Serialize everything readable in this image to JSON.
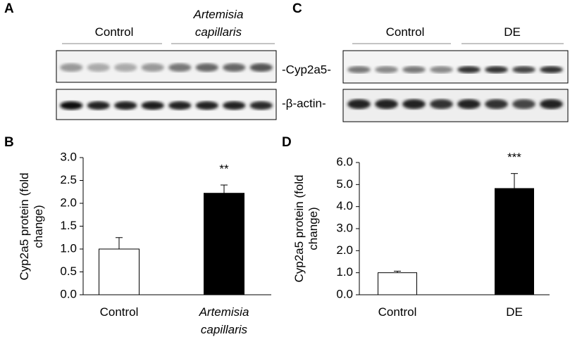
{
  "blots": [
    {
      "panel": "A",
      "groups": [
        "Control",
        "Artemisia capillaris"
      ],
      "bands": [
        "-Cyp2a5-",
        "-β-actin-"
      ]
    },
    {
      "panel": "C",
      "groups": [
        "Control",
        "DE"
      ]
    }
  ],
  "chart_data": [
    {
      "type": "bar",
      "panel": "B",
      "ylabel": "Cyp2a5 protein (fold change)",
      "categories": [
        "Control",
        "Artemisia capillaris"
      ],
      "values": [
        1.0,
        2.22
      ],
      "errors": [
        0.25,
        0.18
      ],
      "colors": [
        "#ffffff",
        "#000000"
      ],
      "annotations": [
        null,
        "**"
      ],
      "ylim": [
        0,
        3
      ],
      "yticks": [
        {
          "value": 0,
          "label": "0.0"
        },
        {
          "value": 0.5,
          "label": "0.5"
        },
        {
          "value": 1,
          "label": "1.0"
        },
        {
          "value": 1.5,
          "label": "1.5"
        },
        {
          "value": 2,
          "label": "2.0"
        },
        {
          "value": 2.5,
          "label": "2.5"
        },
        {
          "value": 3,
          "label": "3.0"
        }
      ]
    },
    {
      "type": "bar",
      "panel": "D",
      "ylabel": "Cyp2a5 protein (fold change)",
      "categories": [
        "Control",
        "DE"
      ],
      "values": [
        1.0,
        4.82
      ],
      "errors": [
        0.07,
        0.68
      ],
      "colors": [
        "#ffffff",
        "#000000"
      ],
      "annotations": [
        null,
        "***"
      ],
      "ylim": [
        0,
        6
      ],
      "yticks": [
        {
          "value": 0,
          "label": "0.0"
        },
        {
          "value": 1,
          "label": "1.0"
        },
        {
          "value": 2,
          "label": "2.0"
        },
        {
          "value": 3,
          "label": "3.0"
        },
        {
          "value": 4,
          "label": "4.0"
        },
        {
          "value": 5,
          "label": "5.0"
        },
        {
          "value": 6,
          "label": "6.0"
        }
      ]
    }
  ]
}
